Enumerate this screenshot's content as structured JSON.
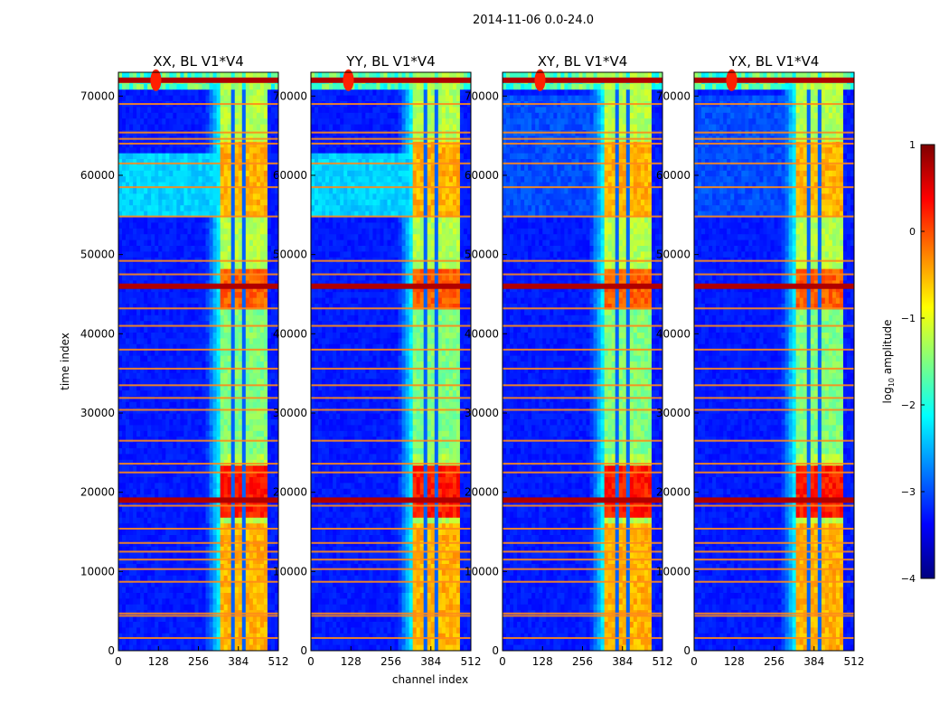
{
  "chart_data": {
    "type": "heatmap",
    "figure_title": "2014-11-06 0.0-24.0",
    "xlabel": "channel index",
    "ylabel": "time index",
    "x_ticks": [
      "0",
      "128",
      "256",
      "384",
      "512"
    ],
    "y_ticks": [
      "0",
      "10000",
      "20000",
      "30000",
      "40000",
      "50000",
      "60000",
      "70000"
    ],
    "xlim": [
      0,
      512
    ],
    "ylim": [
      0,
      73000
    ],
    "panels": [
      {
        "title": "XX, BL V1*V4",
        "pol": "XX"
      },
      {
        "title": "YY, BL V1*V4",
        "pol": "YY"
      },
      {
        "title": "XY, BL V1*V4",
        "pol": "XY"
      },
      {
        "title": "YX, BL V1*V4",
        "pol": "YX"
      }
    ],
    "colorbar": {
      "label": "log10 amplitude",
      "label_base": "log",
      "label_sub": "10",
      "label_rest": " amplitude",
      "range": [
        -4,
        1
      ],
      "ticks": [
        "1",
        "0",
        "−1",
        "−2",
        "−3",
        "−4"
      ],
      "colormap": "jet"
    },
    "structure": {
      "bright_channel_band": [
        330,
        480
      ],
      "bright_channel_gaps": [
        365,
        405,
        443
      ],
      "rfi_rows": [
        1600,
        4400,
        4700,
        8700,
        10300,
        11500,
        12500,
        13600,
        15400,
        18300,
        22500,
        23600,
        26500,
        30400,
        31900,
        33500,
        35600,
        38000,
        41000,
        43200,
        45800,
        47500,
        49200,
        54800,
        58500,
        61500,
        64000,
        64600,
        65400,
        69000
      ],
      "strong_rows": [
        19000,
        46000,
        72000
      ]
    }
  }
}
